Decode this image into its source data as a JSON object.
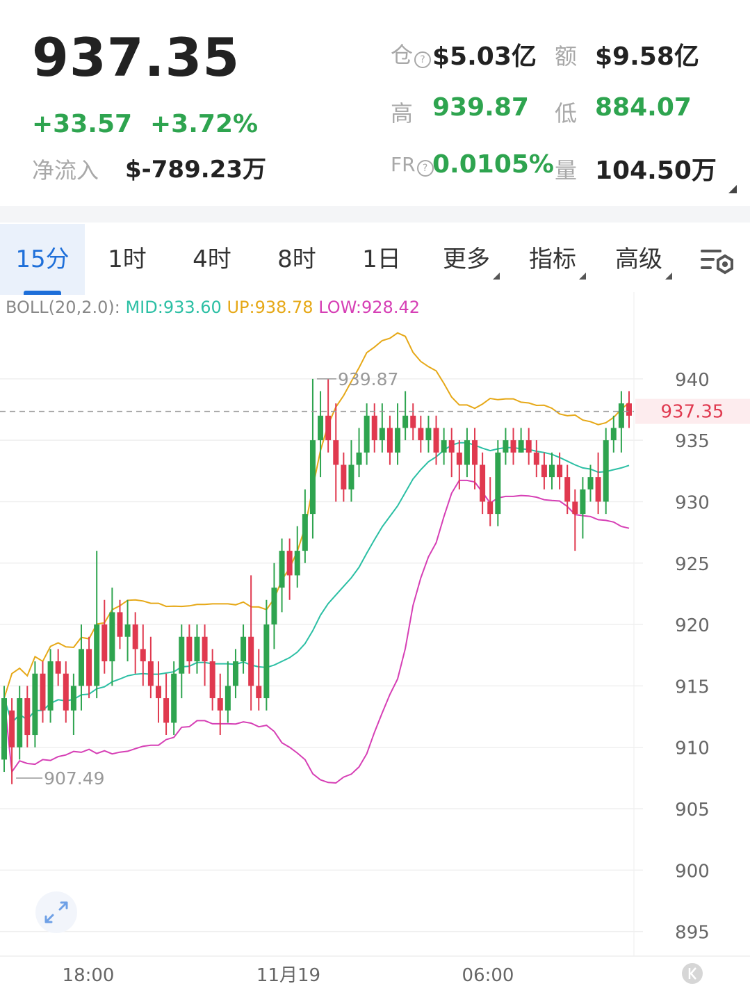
{
  "header": {
    "last_price": "937.35",
    "change": "+33.57",
    "change_pct": "+3.72%",
    "net_inflow_label": "净流入",
    "net_inflow_value": "$-789.23万",
    "stats": {
      "oi_label": "仓",
      "oi_value": "$5.03亿",
      "turnover_label": "额",
      "turnover_value": "$9.58亿",
      "high_label": "高",
      "high_value": "939.87",
      "low_label": "低",
      "low_value": "884.07",
      "fr_label": "FR",
      "fr_value": "0.0105%",
      "vol_label": "量",
      "vol_value": "104.50万"
    }
  },
  "tabs": [
    {
      "label": "15分",
      "active": true
    },
    {
      "label": "1时"
    },
    {
      "label": "4时"
    },
    {
      "label": "8时"
    },
    {
      "label": "1日"
    },
    {
      "label": "更多",
      "dropdown": true
    },
    {
      "label": "指标",
      "dropdown": true
    },
    {
      "label": "高级",
      "dropdown": true
    }
  ],
  "tab_settings_icon": "chart-settings-icon",
  "indicator": {
    "name": "BOLL(20,2.0):",
    "mid": "MID:933.60",
    "up": "UP:938.78",
    "low": "LOW:928.42",
    "colors": {
      "mid": "#2bbfa4",
      "up": "#e6a817",
      "low": "#d63fb5"
    }
  },
  "chart_data": {
    "type": "candlestick",
    "interval": "15分",
    "y_ticks": [
      940,
      935,
      930,
      925,
      920,
      915,
      910,
      905,
      900,
      895
    ],
    "ylim": [
      893,
      946.5
    ],
    "x_ticks": [
      "18:00",
      "11月19",
      "06:00"
    ],
    "current_price": "937.35",
    "high_marker": "939.87",
    "low_marker": "907.49",
    "colors": {
      "up": "#2ea44f",
      "down": "#e0394f",
      "grid": "#efefef"
    },
    "candles": [
      [
        909,
        914,
        908,
        915
      ],
      [
        913,
        910,
        907,
        914
      ],
      [
        910,
        914,
        909,
        915
      ],
      [
        914,
        911,
        910,
        915
      ],
      [
        911,
        916,
        910,
        917
      ],
      [
        916,
        913,
        912,
        917
      ],
      [
        913,
        917,
        912,
        918
      ],
      [
        917,
        916,
        915,
        918
      ],
      [
        916,
        913,
        912,
        917
      ],
      [
        913,
        915,
        911,
        916
      ],
      [
        915,
        918,
        913,
        920
      ],
      [
        918,
        915,
        914,
        919
      ],
      [
        915,
        920,
        914,
        926
      ],
      [
        920,
        917,
        916,
        922
      ],
      [
        917,
        921,
        915,
        923
      ],
      [
        921,
        919,
        918,
        922
      ],
      [
        919,
        920,
        917,
        922
      ],
      [
        920,
        918,
        916,
        921
      ],
      [
        918,
        917,
        915,
        920
      ],
      [
        917,
        915,
        914,
        919
      ],
      [
        915,
        914,
        912,
        917
      ],
      [
        914,
        912,
        911,
        916
      ],
      [
        912,
        916,
        911,
        917
      ],
      [
        916,
        919,
        914,
        920
      ],
      [
        919,
        917,
        916,
        920
      ],
      [
        917,
        919,
        916,
        920
      ],
      [
        919,
        917,
        915,
        920
      ],
      [
        917,
        914,
        913,
        918
      ],
      [
        914,
        913,
        911,
        916
      ],
      [
        913,
        915,
        912,
        917
      ],
      [
        915,
        917,
        914,
        918
      ],
      [
        917,
        919,
        916,
        920
      ],
      [
        919,
        915,
        913,
        924
      ],
      [
        915,
        914,
        913,
        918
      ],
      [
        914,
        920,
        913,
        922
      ],
      [
        920,
        923,
        918,
        925
      ],
      [
        923,
        926,
        921,
        927
      ],
      [
        926,
        924,
        922,
        927
      ],
      [
        924,
        926,
        923,
        928
      ],
      [
        926,
        929,
        925,
        931
      ],
      [
        929,
        935,
        927,
        940
      ],
      [
        935,
        937,
        932,
        939
      ],
      [
        937,
        935,
        934,
        940
      ],
      [
        935,
        933,
        930,
        938
      ],
      [
        933,
        931,
        930,
        934
      ],
      [
        931,
        933,
        930,
        935
      ],
      [
        933,
        934,
        932,
        936
      ],
      [
        934,
        937,
        933,
        938
      ],
      [
        937,
        935,
        934,
        938
      ],
      [
        935,
        936,
        934,
        938
      ],
      [
        936,
        934,
        933,
        937
      ],
      [
        934,
        936,
        933,
        938
      ],
      [
        936,
        937,
        935,
        939
      ],
      [
        937,
        936,
        935,
        938
      ],
      [
        936,
        935,
        934,
        937
      ],
      [
        935,
        936,
        934,
        937
      ],
      [
        936,
        934,
        933,
        937
      ],
      [
        934,
        935,
        933,
        936
      ],
      [
        935,
        934,
        932,
        936
      ],
      [
        934,
        933,
        931,
        935
      ],
      [
        933,
        935,
        932,
        936
      ],
      [
        935,
        933,
        931,
        936
      ],
      [
        933,
        930,
        929,
        934
      ],
      [
        930,
        929,
        928,
        932
      ],
      [
        929,
        934,
        928,
        935
      ],
      [
        934,
        935,
        933,
        936
      ],
      [
        935,
        934,
        933,
        936
      ],
      [
        934,
        935,
        934,
        936
      ],
      [
        935,
        934,
        933,
        936
      ],
      [
        934,
        933,
        932,
        935
      ],
      [
        933,
        932,
        931,
        934
      ],
      [
        932,
        933,
        931,
        934
      ],
      [
        933,
        932,
        931,
        934
      ],
      [
        932,
        930,
        929,
        933
      ],
      [
        930,
        929,
        926,
        931
      ],
      [
        929,
        931,
        927,
        932
      ],
      [
        931,
        932,
        930,
        933
      ],
      [
        932,
        930,
        929,
        934
      ],
      [
        930,
        935,
        929,
        936
      ],
      [
        935,
        936,
        934,
        937
      ],
      [
        936,
        938,
        934,
        939
      ],
      [
        938,
        937,
        936,
        939
      ]
    ]
  }
}
